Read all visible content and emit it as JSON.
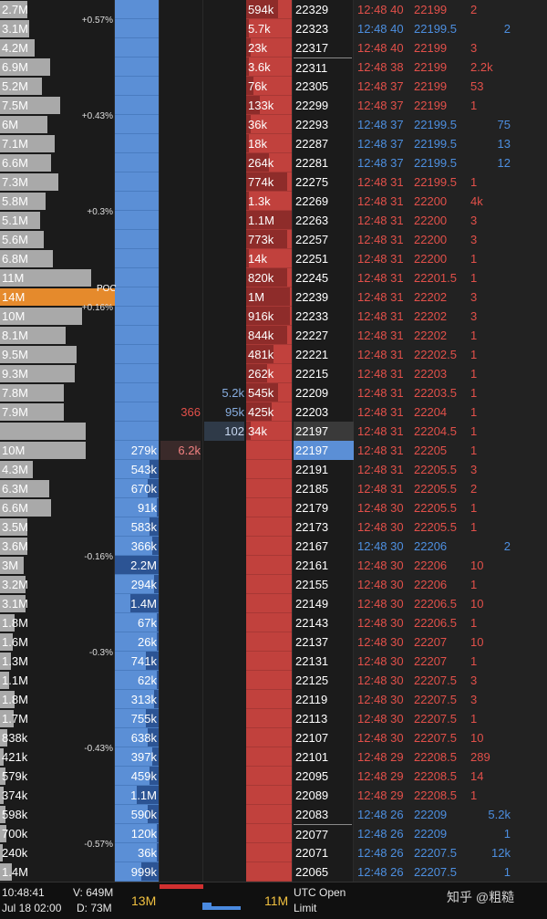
{
  "colors": {
    "bid": "#5b8fd6",
    "ask": "#c1413d",
    "buy_text": "#4d8fe0",
    "sell_text": "#e2504a",
    "poc": "#e58a2c",
    "profile": "#a9a9a9"
  },
  "rows": [
    {
      "vol": "2.7M",
      "vw": 30,
      "ask": "594k",
      "ad": 0.7,
      "price": "22329",
      "time": "12:48 40",
      "tp": "22199",
      "qty": "2",
      "side": "sell"
    },
    {
      "vol": "3.1M",
      "vw": 32,
      "pct": "+0.57%",
      "ask": "5.7k",
      "ad": 0.05,
      "price": "22323",
      "time": "12:48 40",
      "tp": "22199.5",
      "qty": "2",
      "side": "buy"
    },
    {
      "vol": "4.2M",
      "vw": 38,
      "ask": "23k",
      "ad": 0.1,
      "price": "22317",
      "time": "12:48 40",
      "tp": "22199",
      "qty": "3",
      "side": "sell"
    },
    {
      "vol": "6.9M",
      "vw": 55,
      "ask": "3.6k",
      "ad": 0.05,
      "price": "22311",
      "time": "12:48 38",
      "tp": "22199",
      "qty": "2.2k",
      "side": "sell",
      "sep": true
    },
    {
      "vol": "5.2M",
      "vw": 46,
      "ask": "76k",
      "ad": 0.15,
      "price": "22305",
      "time": "12:48 37",
      "tp": "22199",
      "qty": "53",
      "side": "sell"
    },
    {
      "vol": "7.5M",
      "vw": 66,
      "ask": "133k",
      "ad": 0.3,
      "price": "22299",
      "time": "12:48 37",
      "tp": "22199",
      "qty": "1",
      "side": "sell"
    },
    {
      "vol": "6M",
      "vw": 52,
      "pct": "+0.43%",
      "ask": "36k",
      "ad": 0.1,
      "price": "22293",
      "time": "12:48 37",
      "tp": "22199.5",
      "qty": "75",
      "side": "buy"
    },
    {
      "vol": "7.1M",
      "vw": 60,
      "ask": "18k",
      "ad": 0.05,
      "price": "22287",
      "time": "12:48 37",
      "tp": "22199.5",
      "qty": "13",
      "side": "buy"
    },
    {
      "vol": "6.6M",
      "vw": 56,
      "ask": "264k",
      "ad": 0.5,
      "price": "22281",
      "time": "12:48 37",
      "tp": "22199.5",
      "qty": "12",
      "side": "buy"
    },
    {
      "vol": "7.3M",
      "vw": 64,
      "ask": "774k",
      "ad": 0.9,
      "price": "22275",
      "time": "12:48 31",
      "tp": "22199.5",
      "qty": "1",
      "side": "sell"
    },
    {
      "vol": "5.8M",
      "vw": 50,
      "ask": "1.3k",
      "ad": 0.05,
      "price": "22269",
      "time": "12:48 31",
      "tp": "22200",
      "qty": "4k",
      "side": "sell"
    },
    {
      "vol": "5.1M",
      "vw": 44,
      "pct": "+0.3%",
      "ask": "1.1M",
      "ad": 1.0,
      "price": "22263",
      "time": "12:48 31",
      "tp": "22200",
      "qty": "3",
      "side": "sell"
    },
    {
      "vol": "5.6M",
      "vw": 48,
      "ask": "773k",
      "ad": 0.9,
      "price": "22257",
      "time": "12:48 31",
      "tp": "22200",
      "qty": "3",
      "side": "sell"
    },
    {
      "vol": "6.8M",
      "vw": 58,
      "ask": "14k",
      "ad": 0.05,
      "price": "22251",
      "time": "12:48 31",
      "tp": "22200",
      "qty": "1",
      "side": "sell"
    },
    {
      "vol": "11M",
      "vw": 100,
      "ask": "820k",
      "ad": 0.9,
      "price": "22245",
      "time": "12:48 31",
      "tp": "22201.5",
      "qty": "1",
      "side": "sell"
    },
    {
      "vol": "14M",
      "vw": 126,
      "poc": true,
      "ask": "1M",
      "ad": 0.95,
      "price": "22239",
      "time": "12:48 31",
      "tp": "22202",
      "qty": "3",
      "side": "sell"
    },
    {
      "vol": "10M",
      "vw": 90,
      "pct": "+0.16%",
      "ask": "916k",
      "ad": 0.95,
      "price": "22233",
      "time": "12:48 31",
      "tp": "22202",
      "qty": "3",
      "side": "sell"
    },
    {
      "vol": "8.1M",
      "vw": 72,
      "ask": "844k",
      "ad": 0.9,
      "price": "22227",
      "time": "12:48 31",
      "tp": "22202",
      "qty": "1",
      "side": "sell"
    },
    {
      "vol": "9.5M",
      "vw": 84,
      "ask": "481k",
      "ad": 0.6,
      "price": "22221",
      "time": "12:48 31",
      "tp": "22202.5",
      "qty": "1",
      "side": "sell"
    },
    {
      "vol": "9.3M",
      "vw": 82,
      "ask": "262k",
      "ad": 0.45,
      "price": "22215",
      "time": "12:48 31",
      "tp": "22203",
      "qty": "1",
      "side": "sell"
    },
    {
      "vol": "7.8M",
      "vw": 70,
      "mid2": "5.2k",
      "ask": "545k",
      "ad": 0.7,
      "price": "22209",
      "time": "12:48 31",
      "tp": "22203.5",
      "qty": "1",
      "side": "sell"
    },
    {
      "vol": "7.9M",
      "vw": 70,
      "mid1": "366",
      "mid2": "95k",
      "ask": "425k",
      "ad": 0.55,
      "price": "22203",
      "time": "12:48 31",
      "tp": "22204",
      "qty": "1",
      "side": "sell"
    },
    {
      "vol": "",
      "vw": 94,
      "mid2": "102",
      "ask": "34k",
      "ad": 0.1,
      "price": "22197",
      "time": "12:48 31",
      "tp": "22204.5",
      "qty": "1",
      "side": "sell",
      "greyp": true
    },
    {
      "vol": "10M",
      "vw": 94,
      "bid": "279k",
      "mid1": "6.2k",
      "price": "22197",
      "time": "12:48 31",
      "tp": "22205",
      "qty": "1",
      "side": "sell",
      "cur": true
    },
    {
      "vol": "4.3M",
      "vw": 36,
      "bid": "543k",
      "bd": 0.2,
      "price": "22191",
      "time": "12:48 31",
      "tp": "22205.5",
      "qty": "3",
      "side": "sell"
    },
    {
      "vol": "6.3M",
      "vw": 54,
      "bid": "670k",
      "bd": 0.25,
      "price": "22185",
      "time": "12:48 31",
      "tp": "22205.5",
      "qty": "2",
      "side": "sell"
    },
    {
      "vol": "6.6M",
      "vw": 56,
      "bid": "91k",
      "bd": 0.05,
      "price": "22179",
      "time": "12:48 30",
      "tp": "22205.5",
      "qty": "1",
      "side": "sell"
    },
    {
      "vol": "3.5M",
      "vw": 30,
      "bid": "583k",
      "bd": 0.2,
      "price": "22173",
      "time": "12:48 30",
      "tp": "22205.5",
      "qty": "1",
      "side": "sell"
    },
    {
      "vol": "3.6M",
      "vw": 30,
      "bid": "366k",
      "bd": 0.15,
      "price": "22167",
      "time": "12:48 30",
      "tp": "22206",
      "qty": "2",
      "side": "buy"
    },
    {
      "vol": "3M",
      "vw": 26,
      "pct": "-0.16%",
      "bid": "2.2M",
      "bd": 1.0,
      "price": "22161",
      "time": "12:48 30",
      "tp": "22206",
      "qty": "10",
      "side": "sell"
    },
    {
      "vol": "3.2M",
      "vw": 28,
      "bid": "294k",
      "bd": 0.1,
      "price": "22155",
      "time": "12:48 30",
      "tp": "22206",
      "qty": "1",
      "side": "sell"
    },
    {
      "vol": "3.1M",
      "vw": 28,
      "bid": "1.4M",
      "bd": 0.65,
      "price": "22149",
      "time": "12:48 30",
      "tp": "22206.5",
      "qty": "10",
      "side": "sell"
    },
    {
      "vol": "1.8M",
      "vw": 16,
      "bid": "67k",
      "bd": 0.05,
      "price": "22143",
      "time": "12:48 30",
      "tp": "22206.5",
      "qty": "1",
      "side": "sell"
    },
    {
      "vol": "1.6M",
      "vw": 14,
      "bid": "26k",
      "bd": 0.05,
      "price": "22137",
      "time": "12:48 30",
      "tp": "22207",
      "qty": "10",
      "side": "sell"
    },
    {
      "vol": "1.3M",
      "vw": 12,
      "pct": "-0.3%",
      "bid": "741k",
      "bd": 0.3,
      "price": "22131",
      "time": "12:48 30",
      "tp": "22207",
      "qty": "1",
      "side": "sell"
    },
    {
      "vol": "1.1M",
      "vw": 10,
      "bid": "62k",
      "bd": 0.05,
      "price": "22125",
      "time": "12:48 30",
      "tp": "22207.5",
      "qty": "3",
      "side": "sell"
    },
    {
      "vol": "1.8M",
      "vw": 16,
      "bid": "313k",
      "bd": 0.1,
      "price": "22119",
      "time": "12:48 30",
      "tp": "22207.5",
      "qty": "3",
      "side": "sell"
    },
    {
      "vol": "1.7M",
      "vw": 15,
      "bid": "755k",
      "bd": 0.3,
      "price": "22113",
      "time": "12:48 30",
      "tp": "22207.5",
      "qty": "1",
      "side": "sell"
    },
    {
      "vol": "838k",
      "vw": 8,
      "bid": "638k",
      "bd": 0.25,
      "price": "22107",
      "time": "12:48 30",
      "tp": "22207.5",
      "qty": "10",
      "side": "sell"
    },
    {
      "vol": "421k",
      "vw": 4,
      "pct": "-0.43%",
      "bid": "397k",
      "bd": 0.15,
      "price": "22101",
      "time": "12:48 29",
      "tp": "22208.5",
      "qty": "289",
      "side": "sell"
    },
    {
      "vol": "579k",
      "vw": 6,
      "bid": "459k",
      "bd": 0.2,
      "price": "22095",
      "time": "12:48 29",
      "tp": "22208.5",
      "qty": "14",
      "side": "sell"
    },
    {
      "vol": "374k",
      "vw": 4,
      "bid": "1.1M",
      "bd": 0.5,
      "price": "22089",
      "time": "12:48 29",
      "tp": "22208.5",
      "qty": "1",
      "side": "sell"
    },
    {
      "vol": "598k",
      "vw": 6,
      "bid": "590k",
      "bd": 0.25,
      "price": "22083",
      "time": "12:48 26",
      "tp": "22209",
      "qty": "5.2k",
      "side": "buy"
    },
    {
      "vol": "700k",
      "vw": 7,
      "bid": "120k",
      "bd": 0.05,
      "price": "22077",
      "time": "12:48 26",
      "tp": "22209",
      "qty": "1",
      "side": "buy",
      "sep": true
    },
    {
      "vol": "240k",
      "vw": 3,
      "pct": "-0.57%",
      "bid": "36k",
      "bd": 0.05,
      "price": "22071",
      "time": "12:48 26",
      "tp": "22207.5",
      "qty": "12k",
      "side": "buy"
    },
    {
      "vol": "1.4M",
      "vw": 13,
      "bid": "999k",
      "bd": 0.4,
      "price": "22065",
      "time": "12:48 26",
      "tp": "22207.5",
      "qty": "1",
      "side": "buy"
    }
  ],
  "footer": {
    "time": "10:48:41",
    "date": "Jul 18 02:00",
    "volume": "V: 649M",
    "delta": "D: 73M",
    "bid_total": "13M",
    "ask_total": "11M",
    "tz": "UTC Open",
    "order_type": "Limit"
  },
  "watermark": "知乎 @粗糙"
}
